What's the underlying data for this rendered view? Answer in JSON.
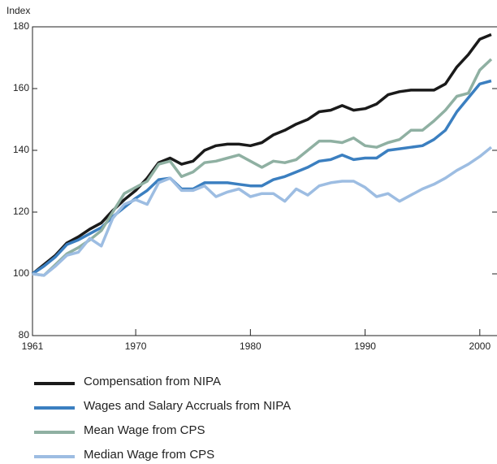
{
  "chart_data": {
    "type": "line",
    "y_label": "Index",
    "x": [
      1961,
      1962,
      1963,
      1964,
      1965,
      1966,
      1967,
      1968,
      1969,
      1970,
      1971,
      1972,
      1973,
      1974,
      1975,
      1976,
      1977,
      1978,
      1979,
      1980,
      1981,
      1982,
      1983,
      1984,
      1985,
      1986,
      1987,
      1988,
      1989,
      1990,
      1991,
      1992,
      1993,
      1994,
      1995,
      1996,
      1997,
      1998,
      1999,
      2000,
      2001
    ],
    "xlim": [
      1961,
      2001.5
    ],
    "xticks": [
      1961,
      1970,
      1980,
      1990,
      2000
    ],
    "ylim": [
      80,
      180
    ],
    "yticks": [
      80,
      100,
      120,
      140,
      160,
      180
    ],
    "series": [
      {
        "name": "Compensation from NIPA",
        "color": "#1a1a1a",
        "values": [
          100,
          103,
          106,
          110,
          112,
          114.5,
          116.5,
          120.5,
          124,
          127,
          131,
          136,
          137.5,
          135.5,
          136.5,
          140,
          141.5,
          142,
          142,
          141.5,
          142.5,
          145,
          146.5,
          148.5,
          150,
          152.5,
          153,
          154.5,
          153,
          153.5,
          155,
          158,
          159,
          159.5,
          159.5,
          159.5,
          161.5,
          167,
          171,
          176,
          177.5
        ]
      },
      {
        "name": "Wages and Salary Accruals from NIPA",
        "color": "#3b7fc0",
        "values": [
          100,
          102.5,
          105.5,
          109.5,
          111,
          113,
          115,
          118.5,
          121.5,
          124.5,
          127,
          130.5,
          131,
          127.5,
          127.5,
          129.5,
          129.5,
          129.5,
          129,
          128.5,
          128.5,
          130.5,
          131.5,
          133,
          134.5,
          136.5,
          137,
          138.5,
          137,
          137.5,
          137.5,
          140,
          140.5,
          141,
          141.5,
          143.5,
          146.5,
          152.5,
          157,
          161.5,
          162.5
        ]
      },
      {
        "name": "Mean Wage from CPS",
        "color": "#8fb0a2",
        "values": [
          100,
          99.5,
          103,
          106.5,
          108.5,
          111,
          114,
          120,
          126,
          128,
          130,
          135.5,
          136.5,
          131.5,
          133,
          136,
          136.5,
          137.5,
          138.5,
          136.5,
          134.5,
          136.5,
          136,
          137,
          140,
          143,
          143,
          142.5,
          144,
          141.5,
          141,
          142.5,
          143.5,
          146.5,
          146.5,
          149.5,
          153,
          157.5,
          158.5,
          166,
          169.5
        ]
      },
      {
        "name": "Median Wage from CPS",
        "color": "#9dbde2",
        "values": [
          100,
          99.5,
          102.5,
          106,
          107,
          111.5,
          109,
          118,
          122.5,
          124,
          122.5,
          129.5,
          131,
          127,
          127,
          128.5,
          125,
          126.5,
          127.5,
          125,
          126,
          126,
          123.5,
          127.5,
          125.5,
          128.5,
          129.5,
          130,
          130,
          128,
          125,
          126,
          123.5,
          125.5,
          127.5,
          129,
          131,
          133.5,
          135.5,
          138,
          141
        ]
      }
    ]
  }
}
